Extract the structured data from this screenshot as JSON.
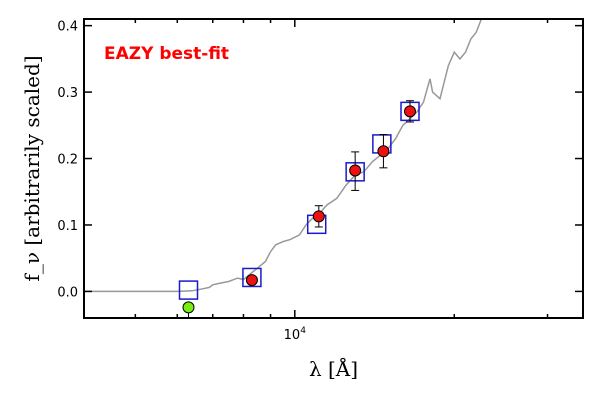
{
  "chart_data": {
    "type": "scatter",
    "annotation": "EAZY best-fit",
    "xlabel": "λ [Å]",
    "ylabel": "f_ν [arbitrarily scaled]",
    "x_scale": "log",
    "xlim": [
      4000,
      35000
    ],
    "ylim": [
      -0.04,
      0.41
    ],
    "x_ticks": [
      10000
    ],
    "x_tick_labels": [
      "10^4"
    ],
    "y_ticks": [
      0.0,
      0.1,
      0.2,
      0.3,
      0.4
    ],
    "y_tick_labels": [
      "0.0",
      "0.1",
      "0.2",
      "0.3",
      "0.4"
    ],
    "grid": false,
    "colors": {
      "annotation": "#ff0000",
      "model": "#999999",
      "model_points": "#1a1acc",
      "observed": "#ee1111",
      "outlier": "#77ee11"
    },
    "series": [
      {
        "kind": "line",
        "points": [
          [
            4000,
            0.0
          ],
          [
            5500,
            0.0
          ],
          [
            6000,
            0.0
          ],
          [
            6400,
            0.001
          ],
          [
            6700,
            0.004
          ],
          [
            6900,
            0.006
          ],
          [
            7000,
            0.01
          ],
          [
            7200,
            0.012
          ],
          [
            7500,
            0.015
          ],
          [
            7800,
            0.02
          ],
          [
            8000,
            0.018
          ],
          [
            8200,
            0.025
          ],
          [
            8500,
            0.035
          ],
          [
            8800,
            0.045
          ],
          [
            9000,
            0.06
          ],
          [
            9200,
            0.07
          ],
          [
            9500,
            0.075
          ],
          [
            9800,
            0.078
          ],
          [
            10200,
            0.085
          ],
          [
            10500,
            0.1
          ],
          [
            10800,
            0.11
          ],
          [
            11200,
            0.12
          ],
          [
            11500,
            0.13
          ],
          [
            12000,
            0.14
          ],
          [
            12500,
            0.16
          ],
          [
            13000,
            0.175
          ],
          [
            13500,
            0.18
          ],
          [
            14000,
            0.195
          ],
          [
            14500,
            0.205
          ],
          [
            15000,
            0.215
          ],
          [
            15500,
            0.23
          ],
          [
            16000,
            0.25
          ],
          [
            16500,
            0.26
          ],
          [
            17000,
            0.27
          ],
          [
            17500,
            0.285
          ],
          [
            18000,
            0.32
          ],
          [
            18200,
            0.3
          ],
          [
            18800,
            0.29
          ],
          [
            19500,
            0.34
          ],
          [
            20000,
            0.36
          ],
          [
            20500,
            0.35
          ],
          [
            21000,
            0.36
          ],
          [
            21500,
            0.38
          ],
          [
            22000,
            0.39
          ],
          [
            22500,
            0.41
          ]
        ]
      },
      {
        "kind": "model-squares",
        "points": [
          [
            6300,
            0.002
          ],
          [
            8300,
            0.021
          ],
          [
            11000,
            0.101
          ],
          [
            13000,
            0.18
          ],
          [
            14600,
            0.222
          ],
          [
            16500,
            0.271
          ]
        ]
      },
      {
        "kind": "observed",
        "points": [
          [
            8300,
            0.017,
            0.004,
            0.004
          ],
          [
            11100,
            0.113,
            0.016,
            0.016
          ],
          [
            13000,
            0.182,
            0.03,
            0.028
          ],
          [
            14700,
            0.211,
            0.025,
            0.025
          ],
          [
            16500,
            0.271,
            0.016,
            0.016
          ]
        ]
      },
      {
        "kind": "outlier",
        "points": [
          [
            6300,
            -0.024,
            0.026,
            0.0
          ]
        ]
      }
    ]
  }
}
